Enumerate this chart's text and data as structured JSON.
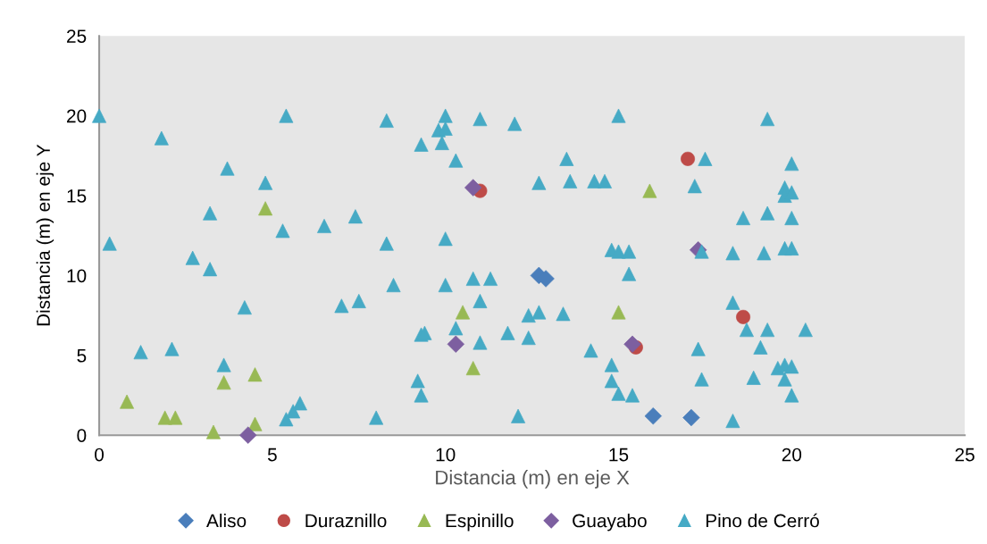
{
  "chart_data": {
    "type": "scatter",
    "xlabel": "Distancia (m) en eje X",
    "ylabel": "Distancia (m) en eje Y",
    "xlim": [
      0,
      25
    ],
    "ylim": [
      0,
      25
    ],
    "xticks": [
      0,
      5,
      10,
      15,
      20,
      25
    ],
    "yticks": [
      0,
      5,
      10,
      15,
      20,
      25
    ],
    "grid": false,
    "legend": "bottom",
    "series": [
      {
        "name": "Aliso",
        "color": "#4a7ebb",
        "marker": "diamond",
        "x": [
          12.7,
          12.9,
          16.0,
          17.1
        ],
        "values": [
          10.0,
          9.8,
          1.2,
          1.1
        ]
      },
      {
        "name": "Duraznillo",
        "color": "#be4b48",
        "marker": "circle",
        "x": [
          11.0,
          17.0,
          18.6,
          15.5
        ],
        "values": [
          15.3,
          17.3,
          7.4,
          5.5
        ]
      },
      {
        "name": "Espinillo",
        "color": "#98b954",
        "marker": "triangle",
        "x": [
          4.8,
          0.8,
          1.9,
          2.2,
          3.3,
          3.6,
          4.5,
          4.5,
          10.5,
          10.8,
          15.0,
          15.9
        ],
        "values": [
          14.2,
          2.1,
          1.1,
          1.1,
          0.2,
          3.3,
          3.8,
          0.7,
          7.7,
          4.2,
          7.7,
          15.3
        ]
      },
      {
        "name": "Guayabo",
        "color": "#7d5fa0",
        "marker": "diamond",
        "x": [
          4.3,
          10.8,
          10.3,
          15.4,
          17.3
        ],
        "values": [
          0.0,
          15.5,
          5.7,
          5.7,
          11.6
        ]
      },
      {
        "name": "Pino de Cerró",
        "color": "#46aac5",
        "marker": "triangle",
        "x": [
          0.0,
          5.4,
          1.8,
          3.7,
          4.8,
          3.2,
          5.3,
          6.5,
          7.4,
          0.3,
          2.7,
          3.2,
          4.2,
          7.0,
          7.5,
          1.2,
          2.1,
          3.6,
          5.8,
          5.6,
          5.4,
          8.0,
          8.3,
          10.0,
          9.8,
          10.0,
          9.3,
          9.9,
          11.0,
          12.0,
          15.0,
          10.3,
          13.5,
          12.7,
          13.6,
          14.3,
          14.6,
          8.3,
          10.0,
          14.8,
          15.0,
          15.3,
          8.5,
          10.0,
          10.8,
          11.3,
          15.3,
          11.0,
          12.4,
          12.7,
          13.4,
          10.3,
          9.3,
          9.4,
          11.8,
          12.4,
          11.0,
          14.2,
          14.8,
          9.2,
          14.8,
          9.3,
          15.0,
          15.4,
          12.1,
          19.3,
          17.5,
          20.0,
          17.2,
          19.8,
          19.8,
          20.0,
          18.6,
          19.3,
          20.0,
          17.4,
          18.3,
          19.2,
          19.8,
          20.0,
          18.3,
          18.7,
          19.3,
          20.4,
          17.3,
          19.1,
          19.6,
          19.8,
          20.0,
          17.4,
          18.9,
          19.8,
          20.0,
          18.3
        ],
        "values": [
          20.0,
          20.0,
          18.6,
          16.7,
          15.8,
          13.9,
          12.8,
          13.1,
          13.7,
          12.0,
          11.1,
          10.4,
          8.0,
          8.1,
          8.4,
          5.2,
          5.4,
          4.4,
          2.0,
          1.5,
          1.0,
          1.1,
          19.7,
          20.0,
          19.1,
          19.2,
          18.2,
          18.3,
          19.8,
          19.5,
          20.0,
          17.2,
          17.3,
          15.8,
          15.9,
          15.9,
          15.9,
          12.0,
          12.3,
          11.6,
          11.5,
          11.5,
          9.4,
          9.4,
          9.8,
          9.8,
          10.1,
          8.4,
          7.5,
          7.7,
          7.6,
          6.7,
          6.3,
          6.4,
          6.4,
          6.1,
          5.8,
          5.3,
          4.4,
          3.4,
          3.4,
          2.5,
          2.6,
          2.5,
          1.2,
          19.8,
          17.3,
          17.0,
          15.6,
          15.5,
          15.0,
          15.2,
          13.6,
          13.9,
          13.6,
          11.5,
          11.4,
          11.4,
          11.7,
          11.7,
          8.3,
          6.6,
          6.6,
          6.6,
          5.4,
          5.5,
          4.2,
          4.4,
          4.3,
          3.5,
          3.6,
          3.5,
          2.5,
          0.9
        ]
      }
    ]
  }
}
